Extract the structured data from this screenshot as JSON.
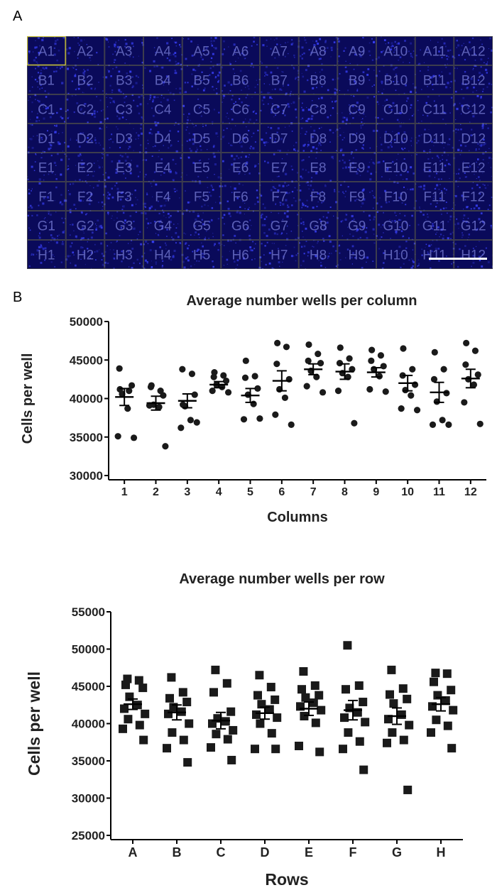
{
  "panel_labels": {
    "a": "A",
    "b": "B"
  },
  "plate": {
    "rows": [
      "A",
      "B",
      "C",
      "D",
      "E",
      "F",
      "G",
      "H"
    ],
    "columns": [
      "1",
      "2",
      "3",
      "4",
      "5",
      "6",
      "7",
      "8",
      "9",
      "10",
      "11",
      "12"
    ],
    "highlighted_well": "A1",
    "colors": {
      "background": "#0a0a5a",
      "cells": "#3b43ff",
      "grid": "#8f8f3a",
      "label": "#6b70c8",
      "scale_bar": "#ffffff"
    }
  },
  "chart_data": [
    {
      "type": "scatter",
      "title": "Average number wells per column",
      "xlabel": "Columns",
      "ylabel": "Cells per well",
      "ylim": [
        30000,
        50000
      ],
      "yticks": [
        30000,
        35000,
        40000,
        45000,
        50000
      ],
      "categories": [
        "1",
        "2",
        "3",
        "4",
        "5",
        "6",
        "7",
        "8",
        "9",
        "10",
        "11",
        "12"
      ],
      "marker": "circle",
      "color": "#1a1a1a",
      "points": [
        [
          41200,
          41000,
          43900,
          41700,
          40600,
          38700,
          35100,
          34900
        ],
        [
          41700,
          41000,
          41500,
          40400,
          39200,
          38900,
          39100,
          33800
        ],
        [
          39200,
          43200,
          43800,
          40500,
          39000,
          37200,
          36200,
          36900
        ],
        [
          43400,
          43000,
          42800,
          42300,
          41800,
          41500,
          41000,
          40800
        ],
        [
          44900,
          42900,
          42700,
          41300,
          40500,
          39300,
          37300,
          37400
        ],
        [
          47200,
          46700,
          44500,
          42500,
          41200,
          40100,
          37900,
          36600
        ],
        [
          47000,
          45800,
          44900,
          44600,
          43600,
          42800,
          41600,
          40800
        ],
        [
          46600,
          45200,
          44600,
          43800,
          43300,
          42800,
          41000,
          36800
        ],
        [
          46300,
          45600,
          44900,
          44200,
          43800,
          42900,
          41200,
          40900
        ],
        [
          46500,
          43800,
          43000,
          41800,
          41100,
          40400,
          38700,
          38500
        ],
        [
          46000,
          43800,
          42500,
          40700,
          39600,
          37200,
          36600,
          36600
        ],
        [
          47200,
          46200,
          44400,
          43100,
          42500,
          41800,
          39500,
          36700
        ]
      ],
      "mean": [
        40200,
        39400,
        39700,
        41800,
        40400,
        42300,
        43800,
        43500,
        43400,
        42000,
        40800,
        42600
      ],
      "sem": [
        1100,
        900,
        900,
        400,
        900,
        1300,
        700,
        1000,
        600,
        1000,
        1300,
        1200
      ]
    },
    {
      "type": "scatter",
      "title": "Average number wells per row",
      "xlabel": "Rows",
      "ylabel": "Cells per well",
      "ylim": [
        25000,
        55000
      ],
      "yticks": [
        25000,
        30000,
        35000,
        40000,
        45000,
        50000,
        55000
      ],
      "categories": [
        "A",
        "B",
        "C",
        "D",
        "E",
        "F",
        "G",
        "H"
      ],
      "marker": "square",
      "color": "#1a1a1a",
      "points": [
        [
          46000,
          45800,
          45200,
          44800,
          43600,
          42500,
          42000,
          41300,
          40600,
          39800,
          39300,
          37800
        ],
        [
          46200,
          44200,
          43400,
          42900,
          42200,
          41600,
          41300,
          40000,
          38800,
          37800,
          36700,
          34800
        ],
        [
          47200,
          45400,
          44200,
          41600,
          40700,
          40300,
          40000,
          39100,
          38600,
          37900,
          36800,
          35100
        ],
        [
          46500,
          44900,
          43800,
          43200,
          42600,
          41900,
          41200,
          40800,
          40000,
          38700,
          36600,
          36600
        ],
        [
          47000,
          45100,
          44600,
          43800,
          43500,
          42800,
          42300,
          41800,
          41000,
          40100,
          37000,
          36200
        ],
        [
          50500,
          45100,
          44600,
          42900,
          42100,
          41500,
          40800,
          40200,
          38800,
          37600,
          36600,
          33800
        ],
        [
          47200,
          44700,
          43900,
          43300,
          42700,
          41200,
          40600,
          39800,
          38800,
          37800,
          37400,
          31100
        ],
        [
          46800,
          46700,
          45600,
          44500,
          43800,
          43100,
          42300,
          41800,
          40500,
          39700,
          38800,
          36700
        ]
      ],
      "mean": [
        42600,
        41500,
        40400,
        41400,
        42000,
        41800,
        41000,
        42600
      ],
      "sem": [
        700,
        1000,
        1100,
        800,
        900,
        1300,
        1100,
        900
      ]
    }
  ]
}
